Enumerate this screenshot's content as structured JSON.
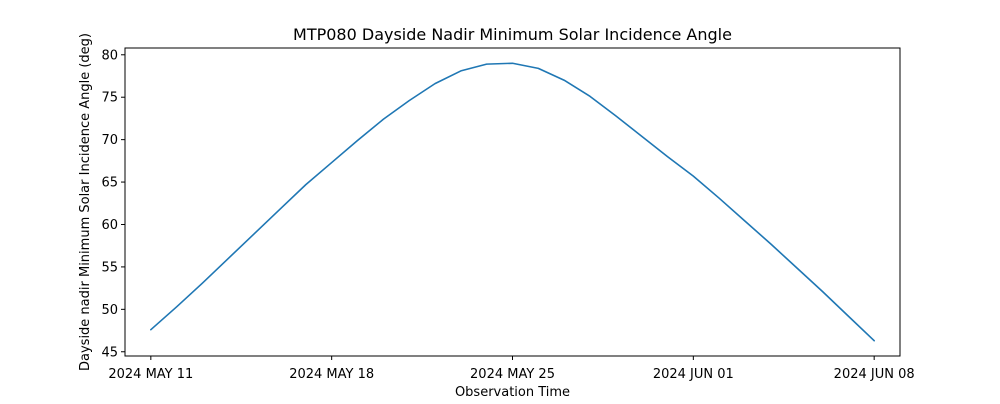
{
  "chart_data": {
    "type": "line",
    "title": "MTP080 Dayside Nadir Minimum Solar Incidence Angle",
    "xlabel": "Observation Time",
    "ylabel": "Dayside nadir Minimum Solar Incidence Angle (deg)",
    "x_tick_labels": [
      "2024 MAY 11",
      "2024 MAY 18",
      "2024 MAY 25",
      "2024 JUN 01",
      "2024 JUN 08"
    ],
    "x_tick_dates": [
      "2024-05-11",
      "2024-05-18",
      "2024-05-25",
      "2024-06-01",
      "2024-06-08"
    ],
    "xlim": [
      "2024-05-10",
      "2024-06-09"
    ],
    "ylim": [
      44.5,
      80.8
    ],
    "y_ticks": [
      45,
      50,
      55,
      60,
      65,
      70,
      75,
      80
    ],
    "grid": false,
    "legend": "none",
    "series": [
      {
        "color": "#1f77b4",
        "x": [
          "2024-05-11",
          "2024-05-12",
          "2024-05-13",
          "2024-05-14",
          "2024-05-15",
          "2024-05-16",
          "2024-05-17",
          "2024-05-18",
          "2024-05-19",
          "2024-05-20",
          "2024-05-21",
          "2024-05-22",
          "2024-05-23",
          "2024-05-24",
          "2024-05-25",
          "2024-05-26",
          "2024-05-27",
          "2024-05-28",
          "2024-05-29",
          "2024-05-30",
          "2024-05-31",
          "2024-06-01",
          "2024-06-02",
          "2024-06-03",
          "2024-06-04",
          "2024-06-05",
          "2024-06-06",
          "2024-06-07",
          "2024-06-08"
        ],
        "y": [
          47.6,
          50.3,
          53.1,
          56.0,
          58.9,
          61.8,
          64.7,
          67.3,
          69.9,
          72.4,
          74.6,
          76.6,
          78.1,
          78.9,
          79.0,
          78.4,
          77.0,
          75.1,
          72.8,
          70.4,
          68.0,
          65.7,
          63.1,
          60.4,
          57.7,
          54.9,
          52.1,
          49.2,
          46.3
        ]
      }
    ]
  }
}
